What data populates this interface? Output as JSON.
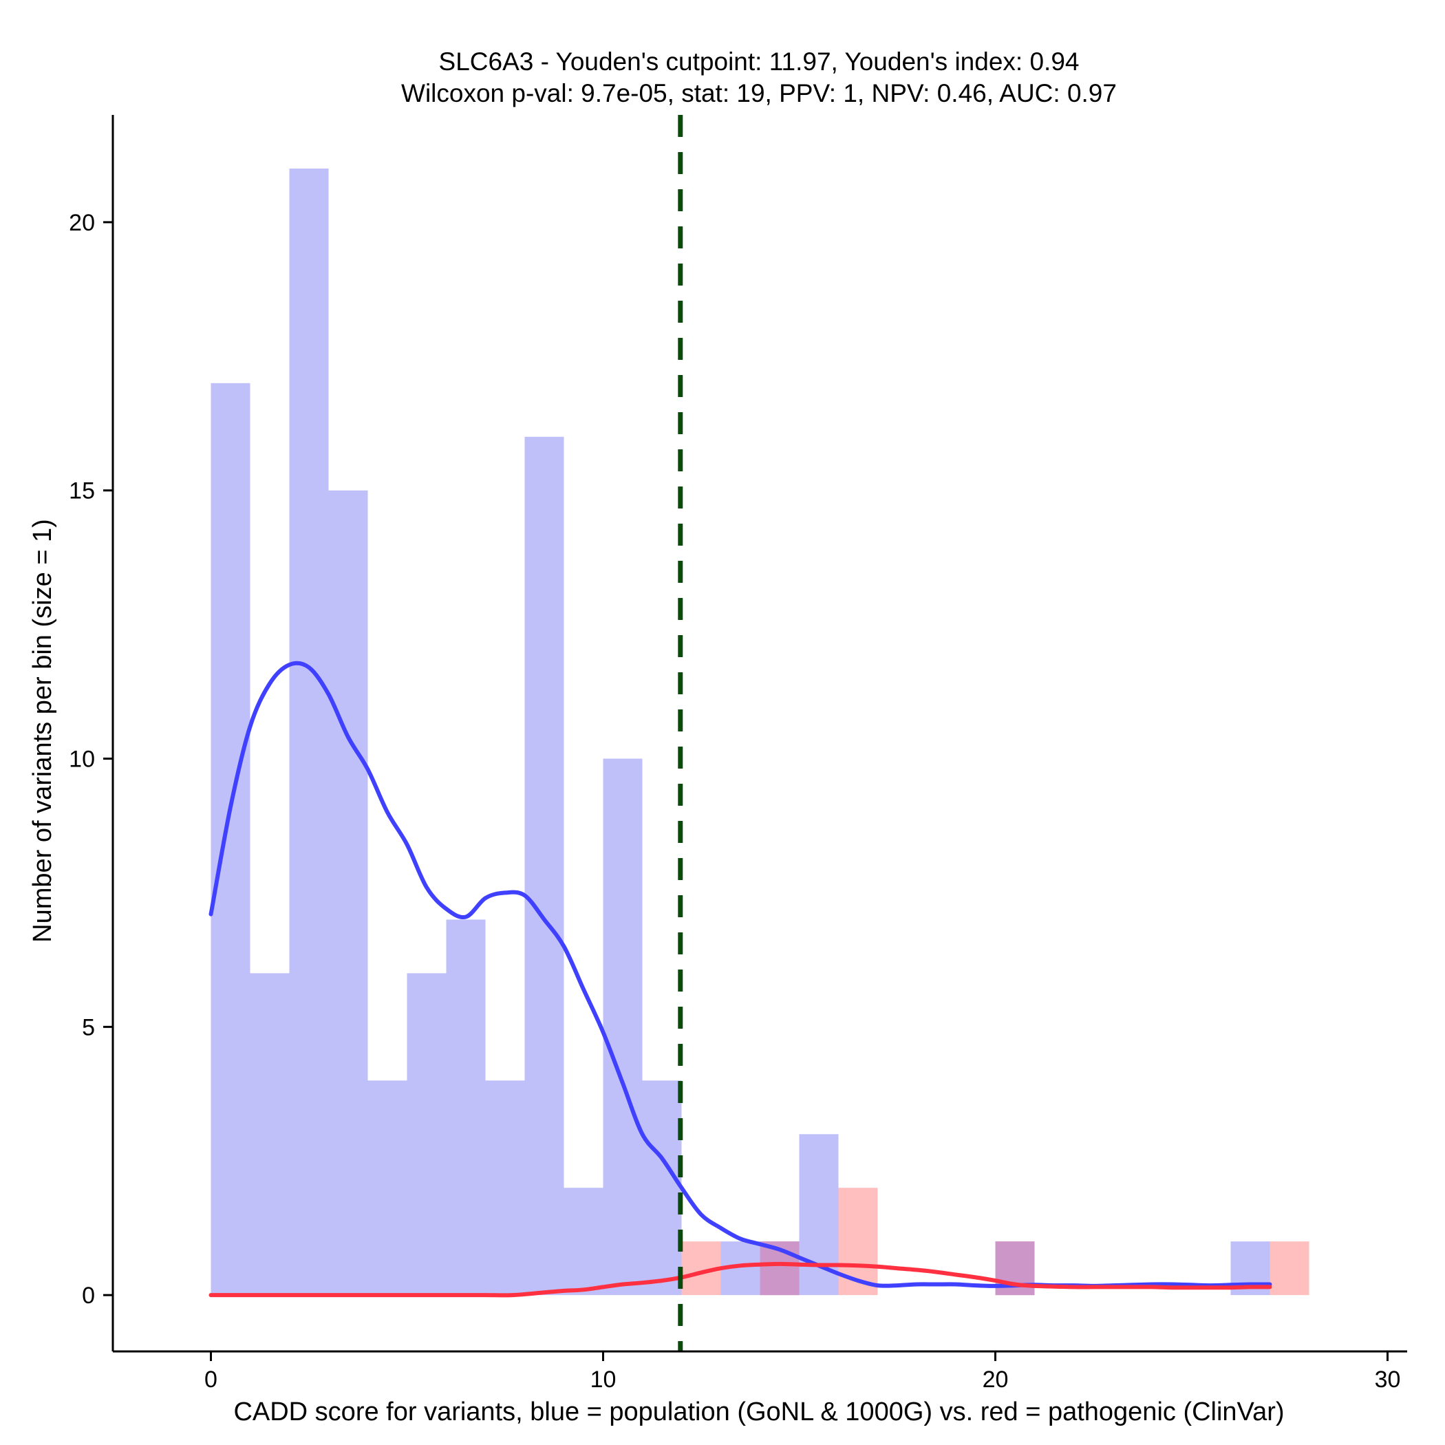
{
  "chart_data": {
    "type": "histogram",
    "title_line1": "SLC6A3 - Youden's cutpoint: 11.97, Youden's index: 0.94",
    "title_line2": "Wilcoxon p-val: 9.7e-05, stat: 19, PPV: 1, NPV: 0.46, AUC: 0.97",
    "xlabel": "CADD score for variants, blue = population (GoNL & 1000G) vs. red = pathogenic (ClinVar)",
    "ylabel": "Number of variants per bin (size = 1)",
    "xlim": [
      -2.5,
      30.5
    ],
    "ylim": [
      -1.05,
      22
    ],
    "xticks": [
      0,
      10,
      20,
      30
    ],
    "yticks": [
      0,
      5,
      10,
      15,
      20
    ],
    "cutpoint": 11.97,
    "bin_size": 1,
    "colors": {
      "population": "#4040ff",
      "population_fill": "#bfbffa",
      "pathogenic": "#ff3040",
      "pathogenic_fill": "#ffbfbf",
      "overlap_fill": "#cc96c8",
      "cutpoint_line": "#0a4a0a"
    },
    "series": [
      {
        "name": "population (GoNL & 1000G)",
        "bin_starts": [
          0,
          1,
          2,
          3,
          4,
          5,
          6,
          7,
          8,
          9,
          10,
          11,
          12,
          13,
          14,
          15,
          16,
          17,
          18,
          19,
          20,
          21,
          22,
          23,
          24,
          25,
          26,
          27
        ],
        "counts": [
          17,
          6,
          21,
          15,
          4,
          6,
          7,
          4,
          16,
          2,
          10,
          4,
          0,
          1,
          1,
          3,
          0,
          0,
          0,
          0,
          1,
          0,
          0,
          0,
          0,
          0,
          1,
          0
        ],
        "density_x": [
          0,
          0.5,
          1,
          1.5,
          2,
          2.5,
          3,
          3.5,
          4,
          4.5,
          5,
          5.5,
          6,
          6.5,
          7,
          7.5,
          8,
          8.5,
          9,
          9.5,
          10,
          10.5,
          11,
          11.5,
          12,
          12.5,
          13,
          13.5,
          14,
          14.5,
          15,
          15.5,
          16,
          16.5,
          17,
          17.5,
          18,
          18.5,
          19,
          19.5,
          20,
          20.5,
          21,
          21.5,
          22,
          22.5,
          23,
          23.5,
          24,
          24.5,
          25,
          25.5,
          26,
          26.5,
          27
        ],
        "density_y": [
          7.1,
          9.1,
          10.6,
          11.4,
          11.75,
          11.7,
          11.2,
          10.4,
          9.8,
          9.0,
          8.4,
          7.6,
          7.2,
          7.05,
          7.4,
          7.5,
          7.45,
          7.0,
          6.5,
          5.7,
          4.9,
          3.95,
          3.0,
          2.55,
          2.0,
          1.5,
          1.25,
          1.05,
          0.95,
          0.85,
          0.7,
          0.55,
          0.4,
          0.27,
          0.18,
          0.18,
          0.2,
          0.2,
          0.2,
          0.18,
          0.17,
          0.18,
          0.19,
          0.18,
          0.18,
          0.17,
          0.18,
          0.19,
          0.2,
          0.2,
          0.19,
          0.18,
          0.19,
          0.2,
          0.2
        ]
      },
      {
        "name": "pathogenic (ClinVar)",
        "bin_starts": [
          0,
          1,
          2,
          3,
          4,
          5,
          6,
          7,
          8,
          9,
          10,
          11,
          12,
          13,
          14,
          15,
          16,
          17,
          18,
          19,
          20,
          21,
          22,
          23,
          24,
          25,
          26,
          27
        ],
        "counts": [
          0,
          0,
          0,
          0,
          0,
          0,
          0,
          0,
          0,
          0,
          0,
          0,
          1,
          0,
          1,
          0,
          2,
          0,
          0,
          0,
          1,
          0,
          0,
          0,
          0,
          0,
          0,
          1
        ],
        "density_x": [
          0,
          1,
          2,
          3,
          4,
          5,
          6,
          7,
          7.7,
          8.5,
          9,
          9.5,
          10,
          10.5,
          11,
          11.5,
          12,
          12.5,
          13,
          13.5,
          14,
          14.5,
          15,
          15.5,
          16,
          16.5,
          17,
          17.5,
          18,
          18.5,
          19,
          19.5,
          20,
          20.5,
          21,
          21.5,
          22,
          22.5,
          23,
          23.5,
          24,
          24.5,
          25,
          25.5,
          26,
          26.5,
          27
        ],
        "density_y": [
          0,
          0,
          0,
          0,
          0,
          0,
          0,
          0,
          0,
          0.05,
          0.08,
          0.1,
          0.15,
          0.2,
          0.23,
          0.27,
          0.33,
          0.42,
          0.5,
          0.55,
          0.57,
          0.58,
          0.57,
          0.56,
          0.56,
          0.55,
          0.53,
          0.5,
          0.47,
          0.43,
          0.38,
          0.33,
          0.27,
          0.2,
          0.17,
          0.16,
          0.15,
          0.15,
          0.15,
          0.15,
          0.15,
          0.14,
          0.14,
          0.14,
          0.14,
          0.15,
          0.15
        ]
      }
    ]
  }
}
